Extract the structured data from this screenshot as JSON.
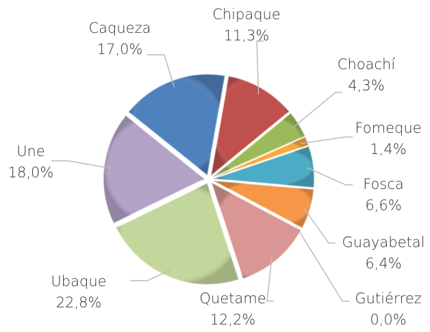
{
  "chart_data": {
    "type": "pie",
    "categories": [
      "Chipaque",
      "Choachí",
      "Fomeque",
      "Fosca",
      "Guayabetal",
      "Gutiérrez",
      "Quetame",
      "Ubaque",
      "Une",
      "Caqueza"
    ],
    "values": [
      11.3,
      4.3,
      1.4,
      6.6,
      6.4,
      0.0,
      12.2,
      22.8,
      18.0,
      17.0
    ],
    "value_labels": [
      "11,3%",
      "4,3%",
      "1,4%",
      "6,6%",
      "6,4%",
      "0,0%",
      "12,2%",
      "22,8%",
      "18,0%",
      "17,0%"
    ],
    "colors": [
      "#c0504d",
      "#9bbb59",
      "#f9a93a",
      "#4bacc6",
      "#f79646",
      "#8064a2",
      "#d99694",
      "#c3d69b",
      "#b3a2c7",
      "#4f81bd"
    ]
  }
}
